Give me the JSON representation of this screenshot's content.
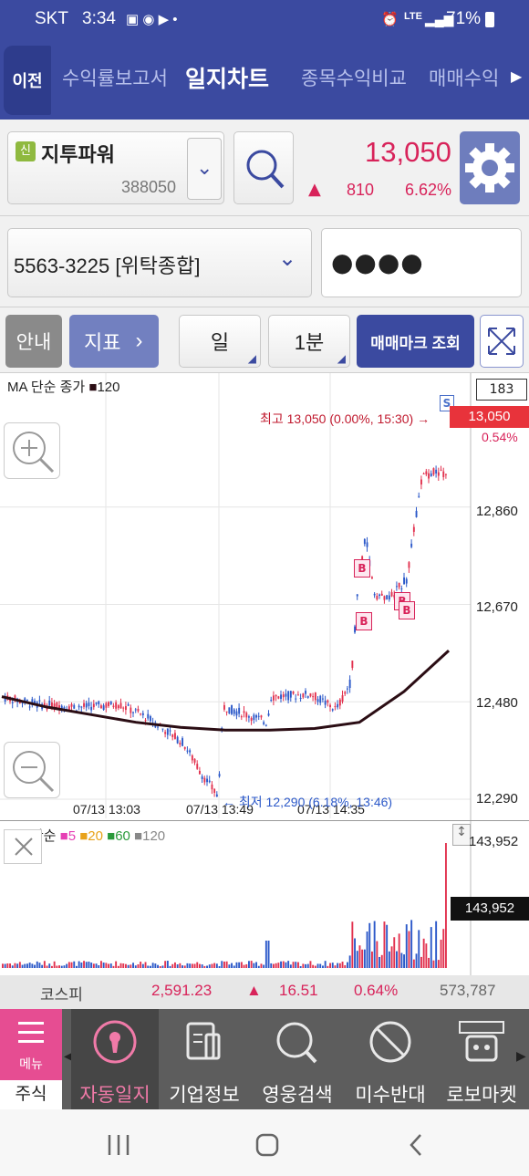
{
  "status_bar": {
    "carrier": "SKT",
    "time": "3:34",
    "network": "LTE",
    "battery": "71%"
  },
  "nav": {
    "back_label": "이전",
    "tabs": [
      {
        "label": "수익률보고서",
        "active": false
      },
      {
        "label": "일지차트",
        "active": true
      },
      {
        "label": "종목수익비교",
        "active": false
      },
      {
        "label": "매매수익",
        "active": false
      }
    ]
  },
  "stock": {
    "badge": "신",
    "name": "지투파워",
    "code": "388050",
    "price": "13,050",
    "change_arrow": "▲",
    "change": "810",
    "change_pct": "6.62%"
  },
  "account": {
    "number": "5563-3225 [위탁종합]",
    "password_mask": "●●●●"
  },
  "toolbar": {
    "guide_label": "안내",
    "indicator_label": "지표",
    "period_label": "일",
    "interval_label": "1분",
    "trade_mark_label": "매매마크 조회"
  },
  "price_chart": {
    "legend_prefix": "MA 단순 종가",
    "legend_item": "120",
    "count_box": "183",
    "high_annotation": "최고 13,050 (0.00%, 15:30) →",
    "low_annotation": "← 최저 12,290 (6.18%, 13:46)",
    "current_price": "13,050",
    "current_pct": "0.54%",
    "y_ticks": [
      "12,860",
      "12,670",
      "12,480",
      "12,290"
    ],
    "x_ticks": [
      "07/13 13:03",
      "07/13 13:49",
      "07/13 14:35"
    ],
    "buy_mark": "B",
    "sell_mark": "S"
  },
  "volume_chart": {
    "legend_prefix": "MA 단순",
    "ma_items": [
      {
        "label": "5",
        "color": "#e63fb4"
      },
      {
        "label": "20",
        "color": "#e8a21a"
      },
      {
        "label": "60",
        "color": "#2a9a3a"
      },
      {
        "label": "120",
        "color": "#888888"
      }
    ],
    "top_value": "143,952",
    "current_value": "143,952"
  },
  "chart_data": {
    "type": "candlestick",
    "title": "지투파워 1분",
    "x_ticks": [
      "07/13 13:03",
      "07/13 13:49",
      "07/13 14:35"
    ],
    "ylim": [
      12290,
      13050
    ],
    "y_ticks": [
      12290,
      12480,
      12670,
      12860
    ],
    "high": 13050,
    "low": 12290,
    "last": 13050,
    "series": [
      {
        "name": "MA 단순 종가 120",
        "values": [
          12490,
          12470,
          12455,
          12440,
          12430,
          12425,
          12425,
          12428,
          12440,
          12500,
          12580
        ]
      }
    ],
    "volume_max": 143952
  },
  "index_bar": {
    "name": "코스피",
    "value": "2,591.23",
    "arrow": "▲",
    "change": "16.51",
    "pct": "0.64%",
    "volume": "573,787"
  },
  "bottom_menu": {
    "menu_label": "메뉴",
    "stock_label": "주식",
    "items": [
      {
        "label": "자동일지",
        "icon": "keyhole-icon"
      },
      {
        "label": "기업정보",
        "icon": "document-icon"
      },
      {
        "label": "영웅검색",
        "icon": "search-icon"
      },
      {
        "label": "미수반대",
        "icon": "prohibited-icon"
      },
      {
        "label": "로보마켓",
        "icon": "robot-icon"
      }
    ]
  },
  "colors": {
    "nav_bg": "#3b4aa0",
    "up_red": "#d8235a",
    "down_blue": "#2c59c9",
    "ma_line": "#2b0d14"
  }
}
